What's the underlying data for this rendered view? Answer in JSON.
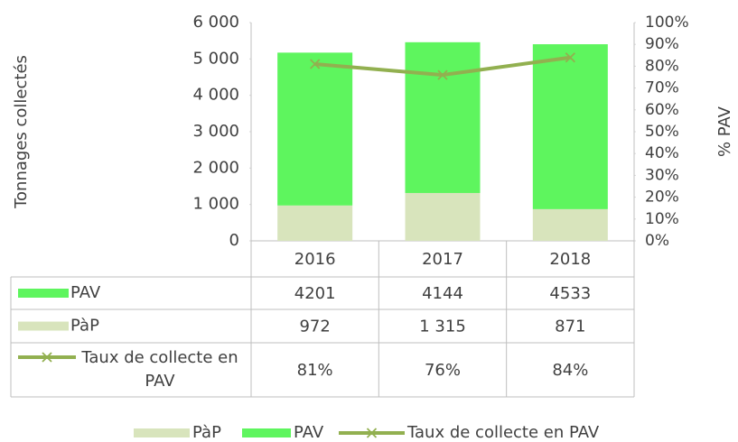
{
  "chart_data": {
    "type": "bar",
    "categories": [
      "2016",
      "2017",
      "2018"
    ],
    "series": [
      {
        "name": "PàP",
        "color": "#d8e4bc",
        "values": [
          972,
          1315,
          871
        ],
        "value_labels": [
          "972",
          "1 315",
          "871"
        ]
      },
      {
        "name": "PAV",
        "color": "#5ef55e",
        "values": [
          4201,
          4144,
          4533
        ]
      },
      {
        "name": "Taux de collecte en PAV",
        "color": "#92b050",
        "type": "line",
        "axis": "y2",
        "values": [
          81,
          76,
          84
        ],
        "value_labels": [
          "81%",
          "76%",
          "84%"
        ]
      }
    ],
    "stacked": true,
    "ylabel": "Tonnages  collectés",
    "y2label": "% PAV",
    "ylim": [
      0,
      6000
    ],
    "yticks": [
      0,
      {
        "value": 1000,
        "label": "1 000"
      },
      {
        "value": 2000,
        "label": "2 000"
      },
      {
        "value": 3000,
        "label": "3 000"
      },
      {
        "value": 4000,
        "label": "4 000"
      },
      {
        "value": 5000,
        "label": "5 000"
      },
      {
        "value": 6000,
        "label": "6 000"
      }
    ],
    "y2lim": [
      0,
      100
    ],
    "y2ticks": [
      {
        "value": 0,
        "label": "0%"
      },
      {
        "value": 10,
        "label": "10%"
      },
      {
        "value": 20,
        "label": "20%"
      },
      {
        "value": 30,
        "label": "30%"
      },
      {
        "value": 40,
        "label": "40%"
      },
      {
        "value": 50,
        "label": "50%"
      },
      {
        "value": 60,
        "label": "60%"
      },
      {
        "value": 70,
        "label": "70%"
      },
      {
        "value": 80,
        "label": "80%"
      },
      {
        "value": 90,
        "label": "90%"
      },
      {
        "value": 100,
        "label": "100%"
      }
    ],
    "legend": "bottom",
    "data_table": true
  }
}
